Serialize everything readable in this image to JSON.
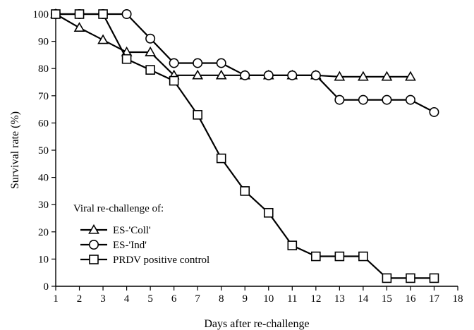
{
  "chart_data": {
    "type": "line",
    "xlabel": "Days after re-challenge",
    "ylabel": "Survival rate (%)",
    "xlim": [
      1,
      18
    ],
    "ylim": [
      0,
      100
    ],
    "xticks": [
      "1",
      "2",
      "3",
      "4",
      "5",
      "6",
      "7",
      "8",
      "9",
      "10",
      "11",
      "12",
      "13",
      "14",
      "15",
      "16",
      "17",
      "18"
    ],
    "yticks": [
      "0",
      "10",
      "20",
      "30",
      "40",
      "50",
      "60",
      "70",
      "80",
      "90",
      "100"
    ],
    "grid": false,
    "legend_title": "Viral re-challenge of:",
    "legend_position": "bottom-left",
    "series": [
      {
        "name": "ES-'Coll'",
        "marker": "triangle",
        "points": [
          [
            1,
            100
          ],
          [
            2,
            95
          ],
          [
            3,
            90.5
          ],
          [
            4,
            86
          ],
          [
            5,
            86
          ],
          [
            6,
            77.5
          ],
          [
            7,
            77.5
          ],
          [
            8,
            77.5
          ],
          [
            9,
            77.5
          ],
          [
            10,
            77.5
          ],
          [
            11,
            77.5
          ],
          [
            12,
            77.5
          ],
          [
            13,
            77
          ],
          [
            14,
            77
          ],
          [
            15,
            77
          ],
          [
            16,
            77
          ]
        ]
      },
      {
        "name": "ES-'Ind'",
        "marker": "circle",
        "points": [
          [
            1,
            100
          ],
          [
            2,
            100
          ],
          [
            3,
            100
          ],
          [
            4,
            100
          ],
          [
            5,
            91
          ],
          [
            6,
            82
          ],
          [
            7,
            82
          ],
          [
            8,
            82
          ],
          [
            9,
            77.5
          ],
          [
            10,
            77.5
          ],
          [
            11,
            77.5
          ],
          [
            12,
            77.5
          ],
          [
            13,
            68.5
          ],
          [
            14,
            68.5
          ],
          [
            15,
            68.5
          ],
          [
            16,
            68.5
          ],
          [
            17,
            64
          ]
        ]
      },
      {
        "name": "PRDV positive control",
        "marker": "square",
        "points": [
          [
            1,
            100
          ],
          [
            2,
            100
          ],
          [
            3,
            100
          ],
          [
            4,
            83.5
          ],
          [
            5,
            79.5
          ],
          [
            6,
            75.5
          ],
          [
            7,
            63
          ],
          [
            8,
            47
          ],
          [
            9,
            35
          ],
          [
            10,
            27
          ],
          [
            11,
            15
          ],
          [
            12,
            11
          ],
          [
            13,
            11
          ],
          [
            14,
            11
          ],
          [
            15,
            3
          ],
          [
            16,
            3
          ],
          [
            17,
            3
          ]
        ]
      }
    ]
  }
}
